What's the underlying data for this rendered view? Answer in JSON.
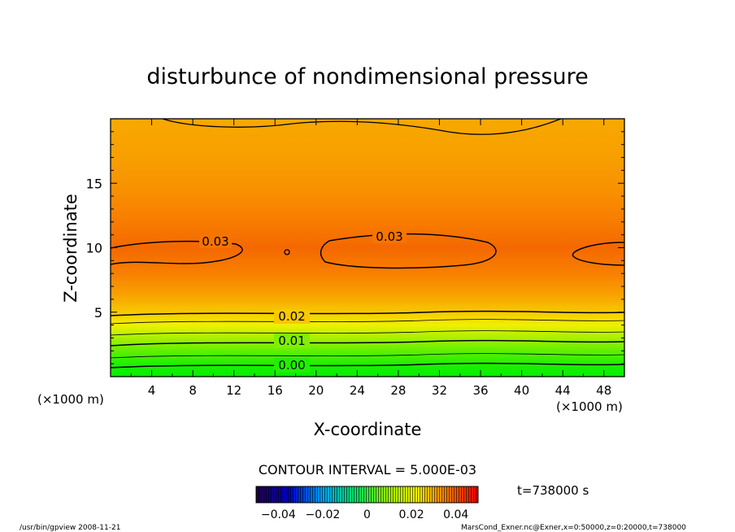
{
  "chart_data": {
    "type": "heatmap",
    "title": "disturbunce of nondimensional pressure",
    "xlabel": "X-coordinate",
    "ylabel": "Z-coordinate",
    "x_unit_left": "(×1000 m)",
    "x_unit_right": "(×1000 m)",
    "xlim": [
      0,
      50
    ],
    "ylim": [
      0,
      20
    ],
    "xticks": [
      4,
      8,
      12,
      16,
      20,
      24,
      28,
      32,
      36,
      40,
      44,
      48
    ],
    "yticks": [
      5,
      10,
      15
    ],
    "contour_interval_label": "CONTOUR INTERVAL = 5.000E-03",
    "contour_labels": [
      {
        "text": "0.00",
        "x": 17.5,
        "z": 0.8
      },
      {
        "text": "0.01",
        "x": 17.5,
        "z": 2.6
      },
      {
        "text": "0.02",
        "x": 17.5,
        "z": 4.5
      },
      {
        "text": "0.03",
        "x": 10.3,
        "z": 10.5
      },
      {
        "text": "0.03",
        "x": 27,
        "z": 10.9
      }
    ],
    "colorbar": {
      "ticks": [
        "-0.04",
        "-0.02",
        "0",
        "0.02",
        "0.04"
      ],
      "range": [
        -0.05,
        0.05
      ]
    },
    "time_label": "t=738000  s",
    "grid": false
  },
  "footer": {
    "left": "/usr/bin/gpview   2008-11-21",
    "right": "MarsCond_Exner.nc@Exner,x=0:50000,z=0:20000,t=738000"
  }
}
